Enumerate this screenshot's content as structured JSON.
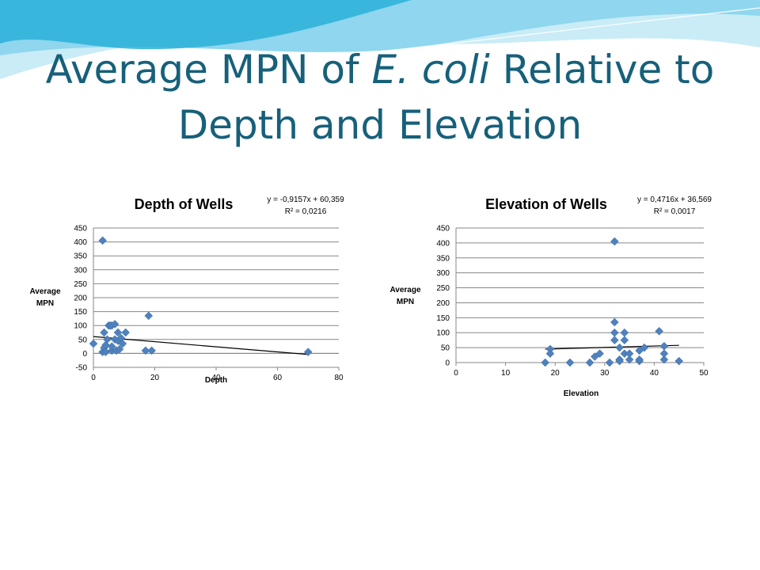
{
  "slide": {
    "title_line1_pre": "Average MPN of ",
    "title_line1_italic": "E. coli",
    "title_line1_post": " Relative to",
    "title_line2": "Depth and Elevation",
    "title_color": "#17607a",
    "wave_colors": [
      "#2ab0d8",
      "#8fd6ee",
      "#c9ecf7"
    ]
  },
  "chart_data": [
    {
      "type": "scatter",
      "title": "Depth of Wells",
      "xlabel": "Depth",
      "ylabel": "Average MPN",
      "xlim": [
        0,
        80
      ],
      "ylim": [
        -50,
        450
      ],
      "xticks": [
        0,
        20,
        40,
        60,
        80
      ],
      "yticks": [
        -50,
        0,
        50,
        100,
        150,
        200,
        250,
        300,
        350,
        400,
        450
      ],
      "grid": "horizontal",
      "marker_color": "#4f81bd",
      "trendline_label": "y = -0,9157x + 60,359",
      "r2_label": "R² = 0,0216",
      "trendline": {
        "slope": -0.9157,
        "intercept": 60.359,
        "x_range": [
          0,
          70
        ]
      },
      "points": [
        [
          0,
          35
        ],
        [
          3,
          405
        ],
        [
          3,
          5
        ],
        [
          3.5,
          20
        ],
        [
          3.5,
          75
        ],
        [
          4,
          5
        ],
        [
          4,
          30
        ],
        [
          4.5,
          50
        ],
        [
          5,
          100
        ],
        [
          5.5,
          100
        ],
        [
          6,
          10
        ],
        [
          6,
          25
        ],
        [
          6,
          100
        ],
        [
          7,
          50
        ],
        [
          7,
          105
        ],
        [
          7.5,
          10
        ],
        [
          8,
          75
        ],
        [
          8,
          45
        ],
        [
          8.5,
          15
        ],
        [
          9,
          55
        ],
        [
          9.5,
          35
        ],
        [
          10.5,
          75
        ],
        [
          17,
          10
        ],
        [
          18,
          135
        ],
        [
          19,
          10
        ],
        [
          70,
          5
        ]
      ]
    },
    {
      "type": "scatter",
      "title": "Elevation of Wells",
      "xlabel": "Elevation",
      "ylabel": "Average MPN",
      "xlim": [
        0,
        50
      ],
      "ylim": [
        0,
        450
      ],
      "xticks": [
        0,
        10,
        20,
        30,
        40,
        50
      ],
      "yticks": [
        0,
        50,
        100,
        150,
        200,
        250,
        300,
        350,
        400,
        450
      ],
      "grid": "horizontal",
      "marker_color": "#4f81bd",
      "trendline_label": "y = 0,4716x + 36,569",
      "r2_label": "R² = 0,0017",
      "trendline": {
        "slope": 0.4716,
        "intercept": 36.569,
        "x_range": [
          18,
          45
        ]
      },
      "points": [
        [
          18,
          0
        ],
        [
          19,
          45
        ],
        [
          19,
          30
        ],
        [
          23,
          0
        ],
        [
          27,
          0
        ],
        [
          28,
          20
        ],
        [
          29,
          30
        ],
        [
          31,
          0
        ],
        [
          32,
          405
        ],
        [
          32,
          135
        ],
        [
          32,
          100
        ],
        [
          32,
          75
        ],
        [
          33,
          10
        ],
        [
          33,
          50
        ],
        [
          33,
          5
        ],
        [
          34,
          100
        ],
        [
          34,
          75
        ],
        [
          34,
          30
        ],
        [
          35,
          30
        ],
        [
          35,
          10
        ],
        [
          37,
          5
        ],
        [
          37,
          40
        ],
        [
          37,
          10
        ],
        [
          38,
          50
        ],
        [
          41,
          105
        ],
        [
          42,
          55
        ],
        [
          42,
          10
        ],
        [
          42,
          30
        ],
        [
          45,
          5
        ]
      ]
    }
  ]
}
